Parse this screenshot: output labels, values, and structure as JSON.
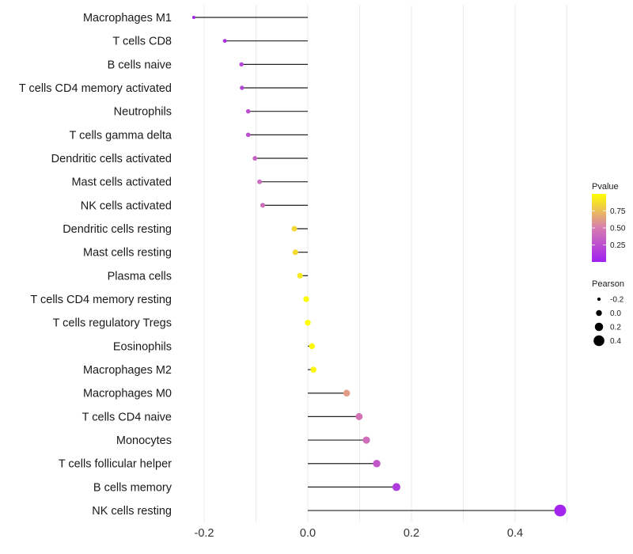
{
  "chart_data": {
    "type": "lollipop",
    "title": "",
    "xlabel": "",
    "ylabel": "",
    "xlim": [
      -0.25,
      0.5
    ],
    "xticks": [
      -0.2,
      0.0,
      0.2,
      0.4
    ],
    "xtick_labels": [
      "-0.2",
      "0.0",
      "0.2",
      "0.4"
    ],
    "grid": true,
    "categories": [
      "Macrophages M1",
      "T cells CD8",
      "B cells naive",
      "T cells CD4 memory activated",
      "Neutrophils",
      "T cells gamma delta",
      "Dendritic cells activated",
      "Mast cells activated",
      "NK cells activated",
      "Dendritic cells resting",
      "Mast cells resting",
      "Plasma cells",
      "T cells CD4 memory resting",
      "T cells regulatory  Tregs",
      "Eosinophils",
      "Macrophages M2",
      "Macrophages M0",
      "T cells CD4 naive",
      "Monocytes",
      "T cells follicular helper",
      "B cells memory",
      "NK cells resting"
    ],
    "pearson": [
      -0.22,
      -0.16,
      -0.128,
      -0.127,
      -0.115,
      -0.115,
      -0.102,
      -0.093,
      -0.087,
      -0.026,
      -0.024,
      -0.015,
      -0.003,
      0.0,
      0.008,
      0.011,
      0.075,
      0.099,
      0.113,
      0.133,
      0.171,
      0.487
    ],
    "pvalue": [
      0.02,
      0.1,
      0.2,
      0.2,
      0.25,
      0.25,
      0.35,
      0.4,
      0.42,
      0.85,
      0.86,
      0.92,
      0.98,
      1.0,
      0.97,
      0.96,
      0.62,
      0.45,
      0.42,
      0.3,
      0.15,
      0.02
    ],
    "legend": {
      "color": {
        "title": "Pvalue",
        "ticks": [
          0.25,
          0.5,
          0.75
        ],
        "tick_labels": [
          "0.25",
          "0.50",
          "0.75"
        ],
        "low": "#a020f0",
        "mid": "#d77cb0",
        "high": "#ffff00"
      },
      "size": {
        "title": "Pearson",
        "values": [
          -0.2,
          0.0,
          0.2,
          0.4
        ],
        "labels": [
          "-0.2",
          "0.0",
          "0.2",
          "0.4"
        ]
      },
      "placement": "right"
    }
  }
}
